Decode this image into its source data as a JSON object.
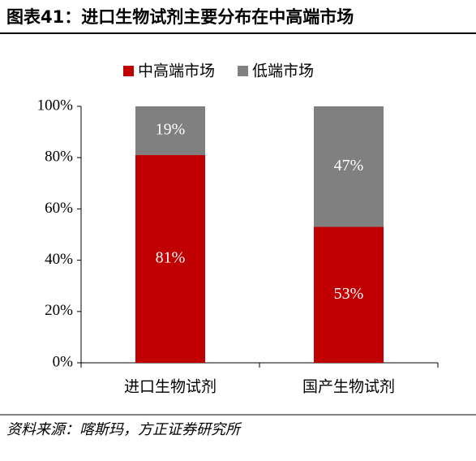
{
  "chart_data": {
    "type": "stacked_bar",
    "title": "图表41：进口生物试剂主要分布在中高端市场",
    "source": "资料来源：喀斯玛，方正证券研究所",
    "categories": [
      "进口生物试剂",
      "国产生物试剂"
    ],
    "series": [
      {
        "name": "中高端市场",
        "color": "#c00000",
        "values": [
          81,
          53
        ],
        "value_labels": [
          "81%",
          "53%"
        ]
      },
      {
        "name": "低端市场",
        "color": "#808080",
        "values": [
          19,
          47
        ],
        "value_labels": [
          "19%",
          "47%"
        ]
      }
    ],
    "ylim": [
      0,
      100
    ],
    "yticks": [
      {
        "value": 0,
        "label": "0%"
      },
      {
        "value": 20,
        "label": "20%"
      },
      {
        "value": 40,
        "label": "40%"
      },
      {
        "value": 60,
        "label": "60%"
      },
      {
        "value": 80,
        "label": "80%"
      },
      {
        "value": 100,
        "label": "100%"
      }
    ],
    "legend": "top"
  }
}
